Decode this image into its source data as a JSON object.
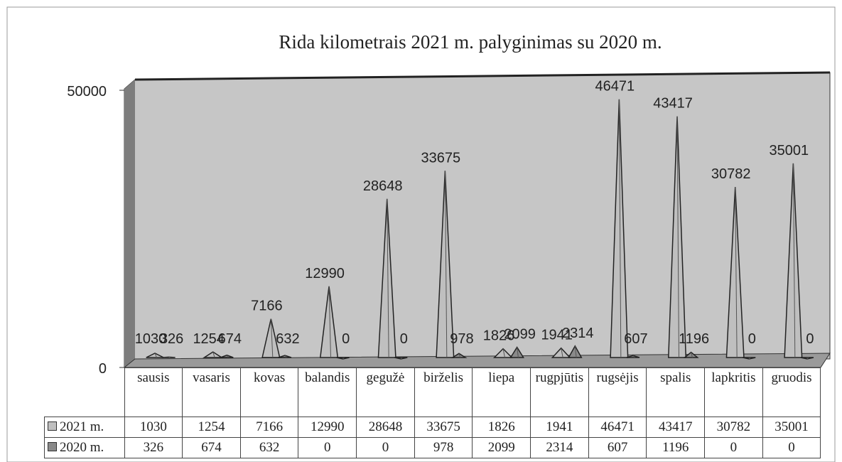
{
  "chart_data": {
    "type": "cone3d",
    "title": "Rida kilometrais 2021 m. palyginimas su 2020 m.",
    "categories": [
      "sausis",
      "vasaris",
      "kovas",
      "balandis",
      "gegužė",
      "birželis",
      "liepa",
      "rugpjūtis",
      "rugsėjis",
      "spalis",
      "lapkritis",
      "gruodis"
    ],
    "series": [
      {
        "name": "2021 m.",
        "color": "#bfbfbf",
        "values": [
          1030,
          1254,
          7166,
          12990,
          28648,
          33675,
          1826,
          1941,
          46471,
          43417,
          30782,
          35001
        ]
      },
      {
        "name": "2020 m.",
        "color": "#8a8a8a",
        "values": [
          326,
          674,
          632,
          0,
          0,
          978,
          2099,
          2314,
          607,
          1196,
          0,
          0
        ]
      }
    ],
    "ylim": [
      0,
      50000
    ],
    "yticks": [
      0,
      50000
    ],
    "legend": "table"
  }
}
